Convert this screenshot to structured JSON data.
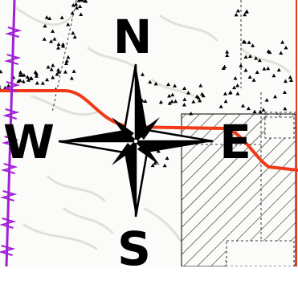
{
  "map": {
    "compass": {
      "north": "N",
      "south": "S",
      "east": "E",
      "west": "W"
    },
    "colors": {
      "road": "#f03a17",
      "boundary": "#a21fd8",
      "parcel_hatch": "#000000",
      "terrain_contour": "#e6e2dc",
      "vegetation_symbol": "#000000"
    },
    "layers": [
      "terrain-contours",
      "vegetation-symbols",
      "parcel-hatch",
      "road",
      "boundary-line",
      "compass-rose"
    ]
  }
}
